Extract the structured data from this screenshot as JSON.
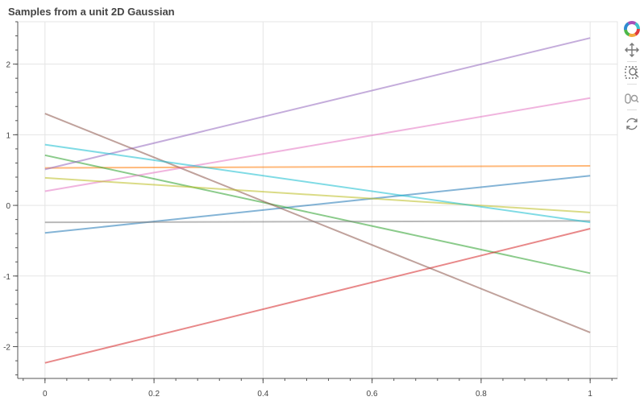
{
  "chart_data": {
    "type": "line",
    "title": "Samples from a unit 2D Gaussian",
    "xlabel": "",
    "ylabel": "",
    "xlim": [
      -0.05,
      1.05
    ],
    "ylim": [
      -2.45,
      2.6
    ],
    "x_ticks": [
      0,
      0.2,
      0.4,
      0.6,
      0.8,
      1
    ],
    "x_tick_labels": [
      "0",
      "0.2",
      "0.4",
      "0.6",
      "0.8",
      "1"
    ],
    "y_ticks": [
      -2,
      -1,
      0,
      1,
      2
    ],
    "y_tick_labels": [
      "-2",
      "-1",
      "0",
      "1",
      "2"
    ],
    "grid": true,
    "series": [
      {
        "values": [
          -0.39,
          0.42
        ],
        "color": "#1f77b4"
      },
      {
        "values": [
          0.53,
          0.56
        ],
        "color": "#ff7f0e"
      },
      {
        "values": [
          0.71,
          -0.96
        ],
        "color": "#2ca02c"
      },
      {
        "values": [
          -2.23,
          -0.33
        ],
        "color": "#d62728"
      },
      {
        "values": [
          0.51,
          2.37
        ],
        "color": "#9467bd"
      },
      {
        "values": [
          1.3,
          -1.8
        ],
        "color": "#8c564b"
      },
      {
        "values": [
          0.2,
          1.52
        ],
        "color": "#e377c2"
      },
      {
        "values": [
          -0.24,
          -0.22
        ],
        "color": "#7f7f7f"
      },
      {
        "values": [
          0.39,
          -0.1
        ],
        "color": "#bcbd22"
      },
      {
        "values": [
          0.86,
          -0.24
        ],
        "color": "#17becf"
      }
    ],
    "x": [
      0,
      1
    ]
  },
  "toolbar": {
    "items": [
      {
        "icon": "bokeh-logo-icon"
      },
      {
        "icon": "pan-icon"
      },
      {
        "icon": "box-zoom-icon"
      },
      {
        "icon": "wheel-zoom-icon"
      },
      {
        "icon": "reset-icon"
      }
    ]
  }
}
